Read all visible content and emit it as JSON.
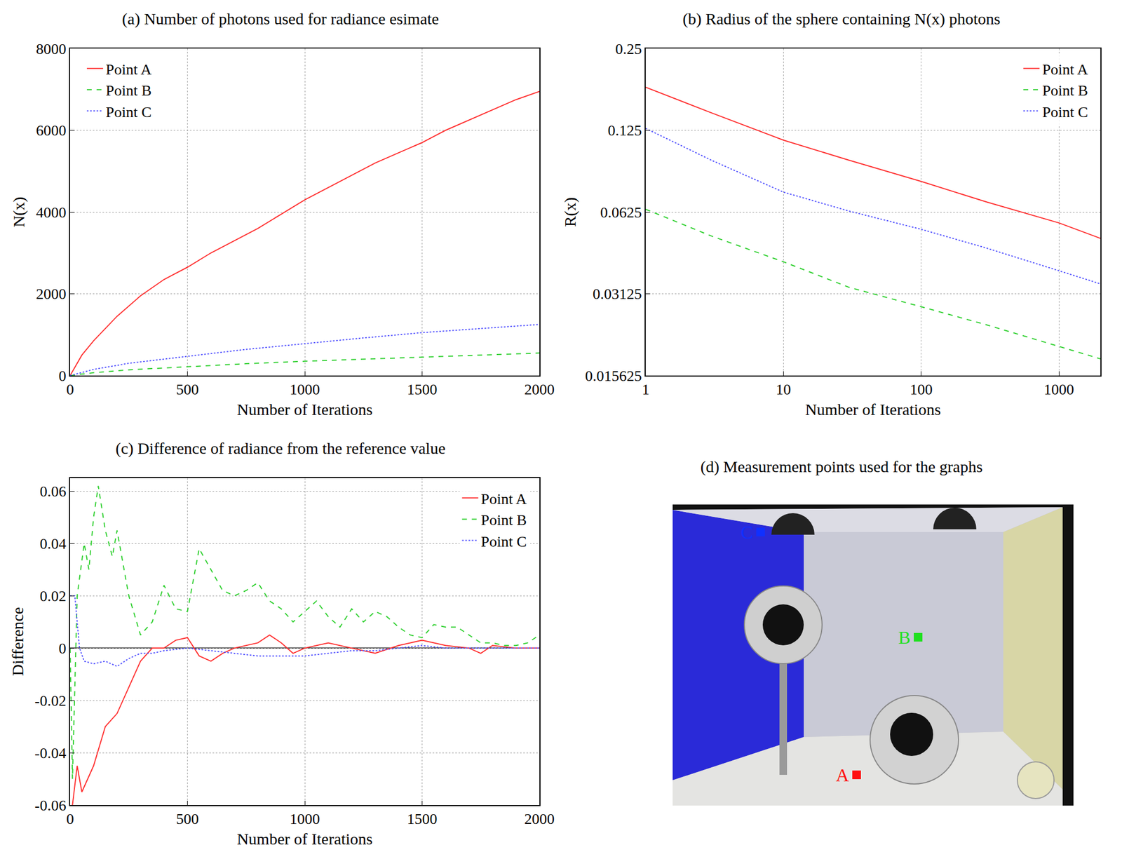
{
  "chart_data": [
    {
      "type": "line",
      "title": "(a) Number of photons used for radiance esimate",
      "x_label": "Number of Iterations",
      "y_label": "N(x)",
      "xlim": [
        0,
        2000
      ],
      "xticks": [
        0,
        500,
        1000,
        1500,
        2000
      ],
      "ylim": [
        0,
        8000
      ],
      "yticks": [
        0,
        2000,
        4000,
        6000,
        8000
      ],
      "grid": true,
      "legend": "upper left",
      "series": [
        {
          "name": "Point A",
          "color": "#ff3030",
          "line_style": "solid",
          "x": [
            0,
            50,
            100,
            200,
            300,
            400,
            500,
            600,
            700,
            800,
            900,
            1000,
            1100,
            1200,
            1300,
            1400,
            1500,
            1600,
            1700,
            1800,
            1900,
            2000
          ],
          "values": [
            0,
            500,
            850,
            1450,
            1950,
            2350,
            2650,
            3000,
            3300,
            3600,
            3950,
            4300,
            4600,
            4900,
            5200,
            5450,
            5700,
            6000,
            6250,
            6500,
            6750,
            6950
          ]
        },
        {
          "name": "Point B",
          "color": "#30d030",
          "line_style": "dash",
          "x": [
            0,
            100,
            250,
            500,
            750,
            1000,
            1250,
            1500,
            1750,
            2000
          ],
          "values": [
            0,
            70,
            140,
            220,
            290,
            350,
            400,
            450,
            500,
            550
          ]
        },
        {
          "name": "Point C",
          "color": "#5050ff",
          "line_style": "dot",
          "x": [
            0,
            100,
            250,
            500,
            750,
            1000,
            1250,
            1500,
            1750,
            2000
          ],
          "values": [
            0,
            150,
            300,
            470,
            640,
            780,
            920,
            1050,
            1150,
            1250
          ]
        }
      ]
    },
    {
      "type": "line",
      "title": "(b) Radius of the sphere containing N(x) photons",
      "x_label": "Number of Iterations",
      "y_label": "R(x)",
      "log": true,
      "xlim": [
        1,
        2000
      ],
      "xticks": [
        1,
        10,
        100,
        1000
      ],
      "ylim": [
        0.015625,
        0.25
      ],
      "yticks": [
        0.015625,
        0.03125,
        0.0625,
        0.125,
        0.25
      ],
      "grid": true,
      "legend": "upper right",
      "series": [
        {
          "name": "Point A",
          "color": "#ff3030",
          "line_style": "solid",
          "x": [
            1,
            3,
            10,
            30,
            100,
            300,
            1000,
            2000
          ],
          "values": [
            0.18,
            0.145,
            0.115,
            0.097,
            0.081,
            0.068,
            0.057,
            0.05
          ]
        },
        {
          "name": "Point B",
          "color": "#30d030",
          "line_style": "dash",
          "x": [
            1,
            3,
            10,
            30,
            100,
            300,
            1000,
            2000
          ],
          "values": [
            0.064,
            0.051,
            0.041,
            0.033,
            0.028,
            0.024,
            0.02,
            0.018
          ]
        },
        {
          "name": "Point C",
          "color": "#5050ff",
          "line_style": "dot",
          "x": [
            1,
            3,
            10,
            30,
            100,
            300,
            1000,
            2000
          ],
          "values": [
            0.127,
            0.097,
            0.074,
            0.063,
            0.054,
            0.046,
            0.038,
            0.034
          ]
        }
      ]
    },
    {
      "type": "line",
      "title": "(c) Difference of radiance from the reference value",
      "x_label": "Number of Iterations",
      "y_label": "Difference",
      "xlim": [
        0,
        2000
      ],
      "xticks": [
        0,
        500,
        1000,
        1500,
        2000
      ],
      "ylim": [
        -0.06,
        0.065
      ],
      "yticks": [
        -0.06,
        -0.04,
        -0.02,
        0,
        0.02,
        0.04,
        0.06
      ],
      "grid": true,
      "legend": "upper right",
      "series": [
        {
          "name": "Point A",
          "color": "#ff3030",
          "line_style": "solid",
          "x": [
            10,
            30,
            50,
            75,
            100,
            150,
            200,
            250,
            300,
            350,
            400,
            450,
            500,
            550,
            600,
            650,
            700,
            800,
            850,
            900,
            950,
            1000,
            1100,
            1200,
            1300,
            1400,
            1500,
            1600,
            1700,
            1750,
            1800,
            1900,
            2000
          ],
          "values": [
            -0.06,
            -0.045,
            -0.055,
            -0.05,
            -0.045,
            -0.03,
            -0.025,
            -0.015,
            -0.005,
            0,
            0,
            0.003,
            0.004,
            -0.003,
            -0.005,
            -0.002,
            0,
            0.002,
            0.005,
            0.002,
            -0.002,
            0,
            0.002,
            0,
            -0.002,
            0.001,
            0.003,
            0.001,
            0,
            -0.002,
            0.001,
            0,
            0
          ]
        },
        {
          "name": "Point B",
          "color": "#30d030",
          "line_style": "dash",
          "x": [
            0,
            10,
            30,
            60,
            80,
            100,
            120,
            150,
            180,
            200,
            250,
            300,
            350,
            400,
            450,
            500,
            550,
            600,
            650,
            700,
            750,
            800,
            850,
            900,
            950,
            1000,
            1050,
            1100,
            1150,
            1200,
            1250,
            1300,
            1350,
            1400,
            1450,
            1500,
            1550,
            1600,
            1650,
            1700,
            1750,
            1800,
            1850,
            1900,
            1950,
            2000
          ],
          "values": [
            0,
            -0.05,
            0.02,
            0.04,
            0.03,
            0.05,
            0.062,
            0.045,
            0.035,
            0.045,
            0.02,
            0.005,
            0.01,
            0.024,
            0.015,
            0.014,
            0.038,
            0.03,
            0.022,
            0.02,
            0.022,
            0.025,
            0.018,
            0.015,
            0.01,
            0.014,
            0.018,
            0.012,
            0.008,
            0.015,
            0.01,
            0.014,
            0.012,
            0.008,
            0.005,
            0.004,
            0.009,
            0.008,
            0.008,
            0.005,
            0.002,
            0.002,
            0.001,
            0.001,
            0.002,
            0.005
          ]
        },
        {
          "name": "Point C",
          "color": "#5050ff",
          "line_style": "dot",
          "x": [
            0,
            20,
            40,
            60,
            100,
            150,
            200,
            250,
            300,
            350,
            400,
            500,
            600,
            700,
            800,
            900,
            1000,
            1100,
            1200,
            1300,
            1400,
            1500,
            1600,
            1700,
            1800,
            2000
          ],
          "values": [
            0.02,
            0.02,
            0,
            -0.005,
            -0.006,
            -0.005,
            -0.007,
            -0.004,
            -0.002,
            -0.002,
            -0.001,
            0,
            -0.001,
            -0.002,
            -0.003,
            -0.003,
            -0.003,
            -0.002,
            -0.001,
            -0.001,
            0,
            0.001,
            0,
            0,
            0,
            0
          ]
        }
      ]
    }
  ],
  "image_panel": {
    "title": "(d) Measurement points used for the graphs",
    "points": [
      {
        "label": "C",
        "color": "#1030ff"
      },
      {
        "label": "B",
        "color": "#20e020"
      },
      {
        "label": "A",
        "color": "#ff1010"
      }
    ]
  }
}
